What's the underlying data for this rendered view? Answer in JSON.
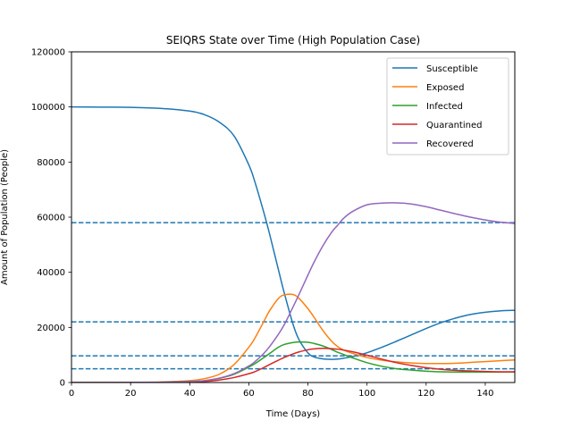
{
  "chart_data": {
    "type": "line",
    "title": "SEIQRS State over Time (High Population Case)",
    "xlabel": "Time (Days)",
    "ylabel": "Amount of Population (People)",
    "xlim": [
      0,
      150
    ],
    "ylim": [
      0,
      120000
    ],
    "xticks": [
      0,
      20,
      40,
      60,
      80,
      100,
      120,
      140
    ],
    "yticks": [
      0,
      20000,
      40000,
      60000,
      80000,
      100000,
      120000
    ],
    "grid": false,
    "legend_position": "top-right",
    "x": [
      0,
      10,
      20,
      30,
      40,
      45,
      50,
      55,
      60,
      62,
      65,
      67,
      70,
      72,
      75,
      77,
      80,
      82,
      85,
      88,
      90,
      92,
      95,
      100,
      105,
      110,
      115,
      120,
      125,
      130,
      135,
      140,
      145,
      150
    ],
    "series": [
      {
        "name": "Susceptible",
        "color": "#1f77b4",
        "values": [
          100000,
          99950,
          99850,
          99500,
          98500,
          97200,
          94500,
          89500,
          79000,
          73000,
          62000,
          54000,
          41000,
          32500,
          21000,
          15500,
          10800,
          9300,
          8600,
          8400,
          8500,
          8800,
          9400,
          10800,
          12800,
          15000,
          17300,
          19600,
          21700,
          23400,
          24700,
          25500,
          26000,
          26200
        ]
      },
      {
        "name": "Exposed",
        "color": "#ff7f0e",
        "values": [
          0,
          20,
          60,
          200,
          700,
          1400,
          3000,
          6500,
          12800,
          16000,
          22000,
          26000,
          30500,
          31800,
          31900,
          30500,
          26800,
          23800,
          19000,
          15000,
          13100,
          11800,
          10600,
          9100,
          8100,
          7500,
          7100,
          6900,
          6900,
          7000,
          7300,
          7600,
          7900,
          8200
        ]
      },
      {
        "name": "Infected",
        "color": "#2ca02c",
        "values": [
          0,
          10,
          30,
          100,
          350,
          700,
          1500,
          3000,
          5600,
          6800,
          9000,
          10500,
          12800,
          13800,
          14500,
          14700,
          14600,
          14200,
          13300,
          12000,
          11000,
          10200,
          9000,
          7200,
          5900,
          5000,
          4500,
          4100,
          3900,
          3800,
          3800,
          3800,
          3800,
          3800
        ]
      },
      {
        "name": "Quarantined",
        "color": "#d62728",
        "values": [
          0,
          5,
          20,
          60,
          200,
          400,
          900,
          1800,
          3200,
          3900,
          5400,
          6500,
          8100,
          9100,
          10400,
          11100,
          11900,
          12200,
          12400,
          12300,
          12100,
          11800,
          11200,
          9900,
          8500,
          7200,
          6200,
          5400,
          4800,
          4400,
          4200,
          4000,
          3900,
          3900
        ]
      },
      {
        "name": "Recovered",
        "color": "#9467bd",
        "values": [
          0,
          10,
          30,
          100,
          350,
          700,
          1600,
          3200,
          6000,
          7500,
          10500,
          13000,
          17500,
          21000,
          27500,
          32000,
          39000,
          43500,
          49500,
          54500,
          57000,
          59500,
          62000,
          64500,
          65100,
          65200,
          64800,
          63800,
          62500,
          61200,
          60000,
          59000,
          58200,
          57700
        ]
      }
    ],
    "reference_lines": [
      {
        "type": "horizontal",
        "y": 58000,
        "style": "dashed",
        "color": "#1f77b4"
      },
      {
        "type": "horizontal",
        "y": 22000,
        "style": "dashed",
        "color": "#1f77b4"
      },
      {
        "type": "horizontal",
        "y": 9700,
        "style": "dashed",
        "color": "#1f77b4"
      },
      {
        "type": "horizontal",
        "y": 5000,
        "style": "dashed",
        "color": "#1f77b4"
      }
    ]
  }
}
